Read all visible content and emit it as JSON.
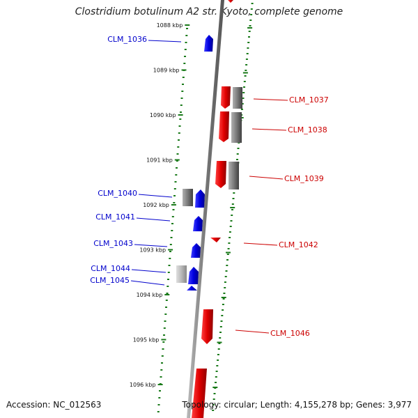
{
  "title": "Clostridium botulinum A2 str. Kyoto, complete genome",
  "footer": {
    "accession": "Accession: NC_012563",
    "summary": "Topology: circular; Length: 4,155,278 bp; Genes: 3,977"
  },
  "colors": {
    "forward_gene": "#e00000",
    "reverse_gene": "#0000e0",
    "neutral_gene": "#7a7a7a",
    "tick": "#1a7a1a",
    "backbone": "#888888",
    "forward_label": "#cc0000",
    "reverse_label": "#0000cc"
  },
  "ruler_ticks": [
    "1088 kbp",
    "1089 kbp",
    "1090 kbp",
    "1091 kbp",
    "1092 kbp",
    "1093 kbp",
    "1094 kbp",
    "1095 kbp",
    "1096 kbp"
  ],
  "gene_labels": {
    "reverse": [
      "CLM_1036",
      "CLM_1040",
      "CLM_1041",
      "CLM_1043",
      "CLM_1044",
      "CLM_1045"
    ],
    "forward": [
      "CLM_1037",
      "CLM_1038",
      "CLM_1039",
      "CLM_1042",
      "CLM_1046"
    ]
  }
}
